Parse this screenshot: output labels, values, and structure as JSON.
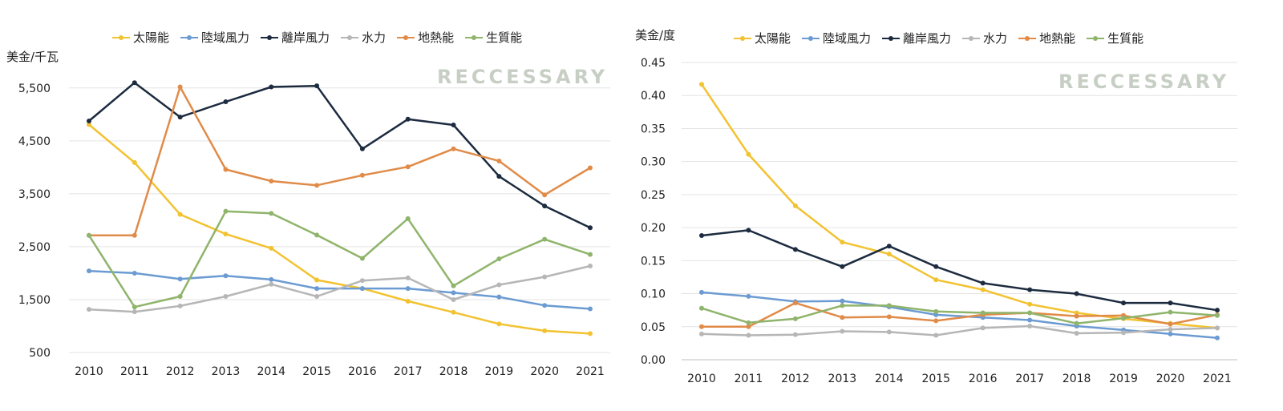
{
  "watermark": "RECCESSARY",
  "chart_data": [
    {
      "type": "line",
      "unit_label": "美金/千瓦",
      "ylim": [
        500,
        5800
      ],
      "yticks": [
        500,
        1500,
        2500,
        3500,
        4500,
        5500
      ],
      "ytick_labels": [
        "500",
        "1,500",
        "2,500",
        "3,500",
        "4,500",
        "5,500"
      ],
      "grid": true,
      "legend": "top",
      "x": [
        "2010",
        "2011",
        "2012",
        "2013",
        "2014",
        "2015",
        "2016",
        "2017",
        "2018",
        "2019",
        "2020",
        "2021"
      ],
      "series": [
        {
          "name": "太陽能",
          "color": "#f2c230",
          "values": [
            4808,
            4090,
            3110,
            2740,
            2470,
            1870,
            1710,
            1470,
            1260,
            1040,
            910,
            857
          ]
        },
        {
          "name": "陸域風力",
          "color": "#6b9bd2",
          "values": [
            2042,
            2000,
            1890,
            1950,
            1880,
            1710,
            1710,
            1710,
            1630,
            1550,
            1390,
            1325
          ]
        },
        {
          "name": "離岸風力",
          "color": "#1c2b3f",
          "values": [
            4876,
            5600,
            4950,
            5240,
            5520,
            5540,
            4350,
            4910,
            4800,
            3830,
            3270,
            2858
          ]
        },
        {
          "name": "水力",
          "color": "#b6b6b6",
          "values": [
            1315,
            1270,
            1380,
            1560,
            1790,
            1560,
            1860,
            1910,
            1500,
            1780,
            1930,
            2135
          ]
        },
        {
          "name": "地熱能",
          "color": "#e08b48",
          "values": [
            2714,
            2714,
            5520,
            3960,
            3740,
            3660,
            3850,
            4010,
            4350,
            4120,
            3480,
            3991
          ]
        },
        {
          "name": "生質能",
          "color": "#8fb46b",
          "values": [
            2714,
            1360,
            1560,
            3170,
            3130,
            2720,
            2280,
            3030,
            1760,
            2270,
            2640,
            2353
          ]
        }
      ]
    },
    {
      "type": "line",
      "unit_label": "美金/度",
      "ylim": [
        0,
        0.45
      ],
      "yticks": [
        0,
        0.05,
        0.1,
        0.15,
        0.2,
        0.25,
        0.3,
        0.35,
        0.4,
        0.45
      ],
      "ytick_labels": [
        "0.00",
        "0.05",
        "0.10",
        "0.15",
        "0.20",
        "0.25",
        "0.30",
        "0.35",
        "0.40",
        "0.45"
      ],
      "grid": true,
      "legend": "top",
      "x": [
        "2010",
        "2011",
        "2012",
        "2013",
        "2014",
        "2015",
        "2016",
        "2017",
        "2018",
        "2019",
        "2020",
        "2021"
      ],
      "series": [
        {
          "name": "太陽能",
          "color": "#f2c230",
          "values": [
            0.417,
            0.311,
            0.233,
            0.178,
            0.16,
            0.121,
            0.106,
            0.084,
            0.071,
            0.062,
            0.055,
            0.048
          ]
        },
        {
          "name": "陸域風力",
          "color": "#6b9bd2",
          "values": [
            0.102,
            0.096,
            0.088,
            0.089,
            0.08,
            0.068,
            0.064,
            0.06,
            0.051,
            0.045,
            0.039,
            0.033
          ]
        },
        {
          "name": "離岸風力",
          "color": "#1c2b3f",
          "values": [
            0.188,
            0.196,
            0.167,
            0.141,
            0.172,
            0.141,
            0.116,
            0.106,
            0.1,
            0.086,
            0.086,
            0.075
          ]
        },
        {
          "name": "水力",
          "color": "#b6b6b6",
          "values": [
            0.039,
            0.037,
            0.038,
            0.043,
            0.042,
            0.037,
            0.048,
            0.051,
            0.04,
            0.041,
            0.046,
            0.048
          ]
        },
        {
          "name": "地熱能",
          "color": "#e08b48",
          "values": [
            0.05,
            0.05,
            0.086,
            0.064,
            0.065,
            0.059,
            0.068,
            0.071,
            0.066,
            0.067,
            0.054,
            0.068
          ]
        },
        {
          "name": "生質能",
          "color": "#8fb46b",
          "values": [
            0.078,
            0.056,
            0.062,
            0.082,
            0.082,
            0.073,
            0.071,
            0.071,
            0.055,
            0.063,
            0.072,
            0.067
          ]
        }
      ]
    }
  ]
}
